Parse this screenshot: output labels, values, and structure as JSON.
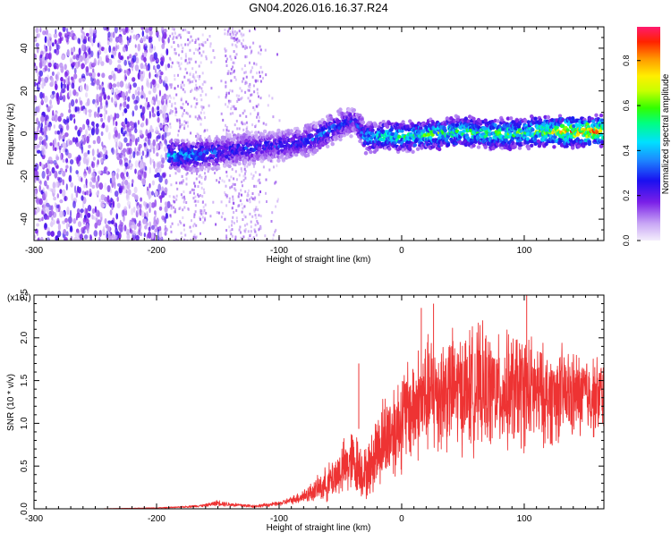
{
  "chart_data": [
    {
      "type": "heatmap",
      "title": "GN04.2026.016.16.37.R24",
      "xlabel": "Height of straight line (km)",
      "ylabel": "Frequency (Hz)",
      "xlim": [
        -300,
        165
      ],
      "ylim": [
        -50,
        50
      ],
      "xticks": [
        "-300",
        "-200",
        "-100",
        "0",
        "100"
      ],
      "xtick_values": [
        -300,
        -200,
        -100,
        0,
        100
      ],
      "yticks": [
        "40",
        "20",
        "0",
        "-20",
        "-40"
      ],
      "ytick_values": [
        40,
        20,
        0,
        -20,
        -40
      ],
      "colorbar": {
        "label": "Normalized spectral amplitude",
        "range": [
          0,
          0.95
        ],
        "ticks": [
          "0.0",
          "0.2",
          "0.4",
          "0.6",
          "0.8"
        ],
        "tick_values": [
          0,
          0.2,
          0.4,
          0.6,
          0.8
        ]
      },
      "ridge": {
        "x": [
          -190,
          -170,
          -150,
          -130,
          -110,
          -90,
          -70,
          -55,
          -45,
          -38,
          -30,
          -10,
          10,
          30,
          50,
          70,
          90,
          110,
          130,
          150,
          165
        ],
        "y": [
          -10,
          -10,
          -9,
          -7,
          -6,
          -5,
          -2,
          3,
          5,
          6,
          -2,
          -1,
          -1,
          0,
          1,
          0,
          0,
          1,
          1,
          1,
          1
        ],
        "amplitude": [
          0.45,
          0.4,
          0.35,
          0.3,
          0.3,
          0.3,
          0.35,
          0.35,
          0.3,
          0.25,
          0.45,
          0.55,
          0.55,
          0.6,
          0.6,
          0.6,
          0.6,
          0.65,
          0.75,
          0.85,
          0.8
        ]
      },
      "noise_region": {
        "x": [
          -300,
          -190
        ],
        "amplitude": 0.25
      },
      "grid": false
    },
    {
      "type": "line",
      "xlabel": "Height of straight line (km)",
      "ylabel": "SNR (10 * v/v)",
      "multiplier": "(x10⁴)",
      "multiplier_base": "(x10",
      "multiplier_exp": "4",
      "multiplier_close": ")",
      "xlim": [
        -300,
        165
      ],
      "ylim": [
        0,
        2.5
      ],
      "xticks": [
        "-300",
        "-200",
        "-100",
        "0",
        "100"
      ],
      "xtick_values": [
        -300,
        -200,
        -100,
        0,
        100
      ],
      "yticks": [
        "0.0",
        "0.5",
        "1.0",
        "1.5",
        "2.0",
        "2.5"
      ],
      "ytick_values": [
        0,
        0.5,
        1.0,
        1.5,
        2.0,
        2.5
      ],
      "color": "#ee3333",
      "series": [
        {
          "x": [
            -300,
            -250,
            -200,
            -180,
            -160,
            -150,
            -140,
            -120,
            -100,
            -90,
            -80,
            -70,
            -60,
            -50,
            -40,
            -35,
            -30,
            -25,
            -20,
            -15,
            -10,
            -5,
            0,
            10,
            20,
            30,
            40,
            50,
            60,
            70,
            80,
            90,
            100,
            110,
            120,
            130,
            140,
            150,
            160,
            165
          ],
          "y": [
            0.0,
            0.0,
            0.01,
            0.02,
            0.04,
            0.07,
            0.05,
            0.03,
            0.06,
            0.1,
            0.15,
            0.22,
            0.3,
            0.45,
            0.55,
            0.5,
            0.4,
            0.5,
            0.7,
            0.8,
            0.9,
            0.95,
            1.05,
            1.2,
            1.3,
            1.35,
            1.4,
            1.38,
            1.42,
            1.4,
            1.35,
            1.38,
            1.4,
            1.35,
            1.3,
            1.35,
            1.32,
            1.35,
            1.3,
            1.35
          ],
          "spread": [
            0.0,
            0.0,
            0.005,
            0.01,
            0.02,
            0.04,
            0.03,
            0.02,
            0.03,
            0.05,
            0.1,
            0.15,
            0.25,
            0.35,
            0.45,
            0.4,
            0.35,
            0.4,
            0.55,
            0.6,
            0.65,
            0.7,
            0.7,
            0.75,
            0.8,
            0.85,
            0.8,
            0.8,
            0.85,
            0.8,
            0.75,
            0.8,
            0.8,
            0.7,
            0.65,
            0.65,
            0.6,
            0.55,
            0.55,
            0.5
          ],
          "peaks": [
            {
              "x": 102,
              "y": 2.5
            },
            {
              "x": 26,
              "y": 2.4
            },
            {
              "x": 16,
              "y": 2.35
            },
            {
              "x": -35,
              "y": 1.7
            }
          ]
        }
      ]
    }
  ]
}
